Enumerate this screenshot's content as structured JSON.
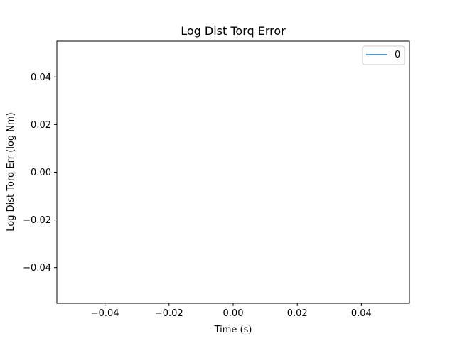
{
  "chart_data": {
    "type": "line",
    "title": "Log Dist Torq Error",
    "xlabel": "Time (s)",
    "ylabel": "Log Dist Torq Err (log Nm)",
    "xlim": [
      -0.055,
      0.055
    ],
    "ylim": [
      -0.055,
      0.055
    ],
    "xticks": [
      -0.04,
      -0.02,
      0.0,
      0.02,
      0.04
    ],
    "xtick_labels": [
      "−0.04",
      "−0.02",
      "0.00",
      "0.02",
      "0.04"
    ],
    "yticks": [
      0.04,
      0.02,
      0.0,
      -0.02,
      -0.04
    ],
    "ytick_labels": [
      "0.04",
      "0.02",
      "0.00",
      "−0.02",
      "−0.04"
    ],
    "grid": false,
    "legend_position": "top-right",
    "series": [
      {
        "name": "0",
        "x": [],
        "y": [],
        "color": "#1f77b4"
      }
    ]
  }
}
